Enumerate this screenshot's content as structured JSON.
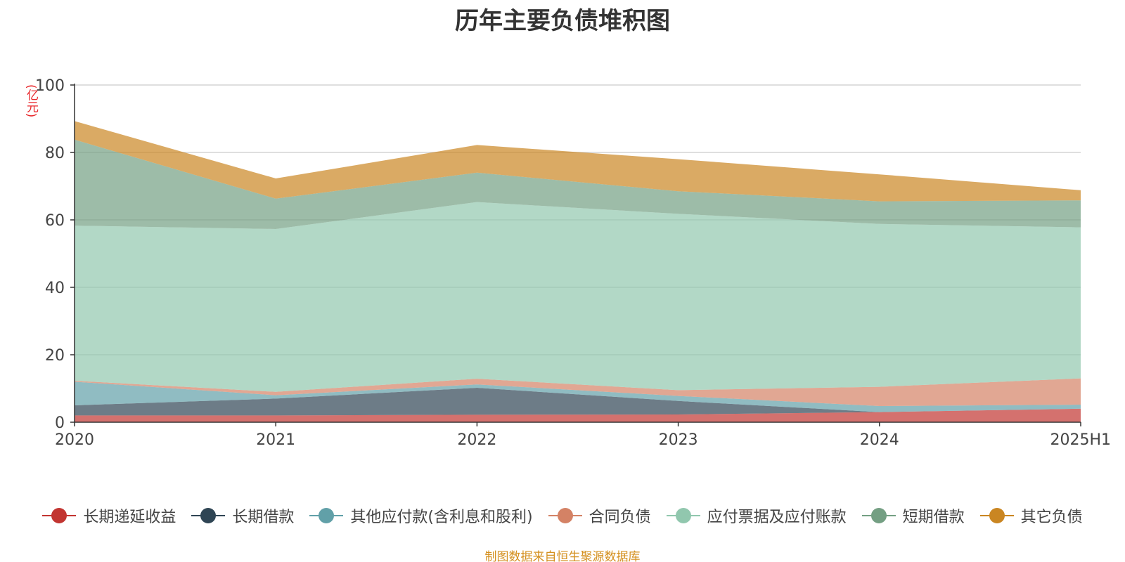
{
  "title": "历年主要负债堆积图",
  "unit": "(亿元)",
  "source": "制图数据来自恒生聚源数据库",
  "chart_data": {
    "type": "area",
    "stacked": true,
    "title": "历年主要负债堆积图",
    "ylabel": "(亿元)",
    "xlabel": "",
    "categories": [
      "2020",
      "2021",
      "2022",
      "2023",
      "2024",
      "2025H1"
    ],
    "ylim": [
      0,
      100
    ],
    "yticks": [
      0,
      20,
      40,
      60,
      80,
      100
    ],
    "grid": true,
    "legend_position": "bottom",
    "series": [
      {
        "name": "长期递延收益",
        "color": "#c23531",
        "values": [
          2.0,
          2.0,
          2.2,
          2.3,
          3.0,
          4.0
        ]
      },
      {
        "name": "长期借款",
        "color": "#2f4554",
        "values": [
          3.0,
          5.0,
          8.0,
          4.0,
          0.0,
          0.0
        ]
      },
      {
        "name": "其他应付款(含利息和股利)",
        "color": "#61a0a8",
        "values": [
          7.0,
          1.0,
          1.0,
          1.5,
          1.8,
          1.2
        ]
      },
      {
        "name": "合同负债",
        "color": "#d48265",
        "values": [
          0.3,
          1.0,
          1.7,
          1.7,
          5.7,
          7.8
        ]
      },
      {
        "name": "应付票据及应付账款",
        "color": "#91c7ae",
        "values": [
          46.0,
          48.3,
          52.4,
          52.3,
          48.3,
          44.8
        ]
      },
      {
        "name": "短期借款",
        "color": "#749f83",
        "values": [
          25.5,
          9.0,
          8.7,
          6.7,
          6.7,
          8.0
        ]
      },
      {
        "name": "其它负债",
        "color": "#ca8622",
        "values": [
          5.5,
          6.0,
          8.2,
          9.5,
          8.0,
          3.0
        ]
      }
    ]
  }
}
